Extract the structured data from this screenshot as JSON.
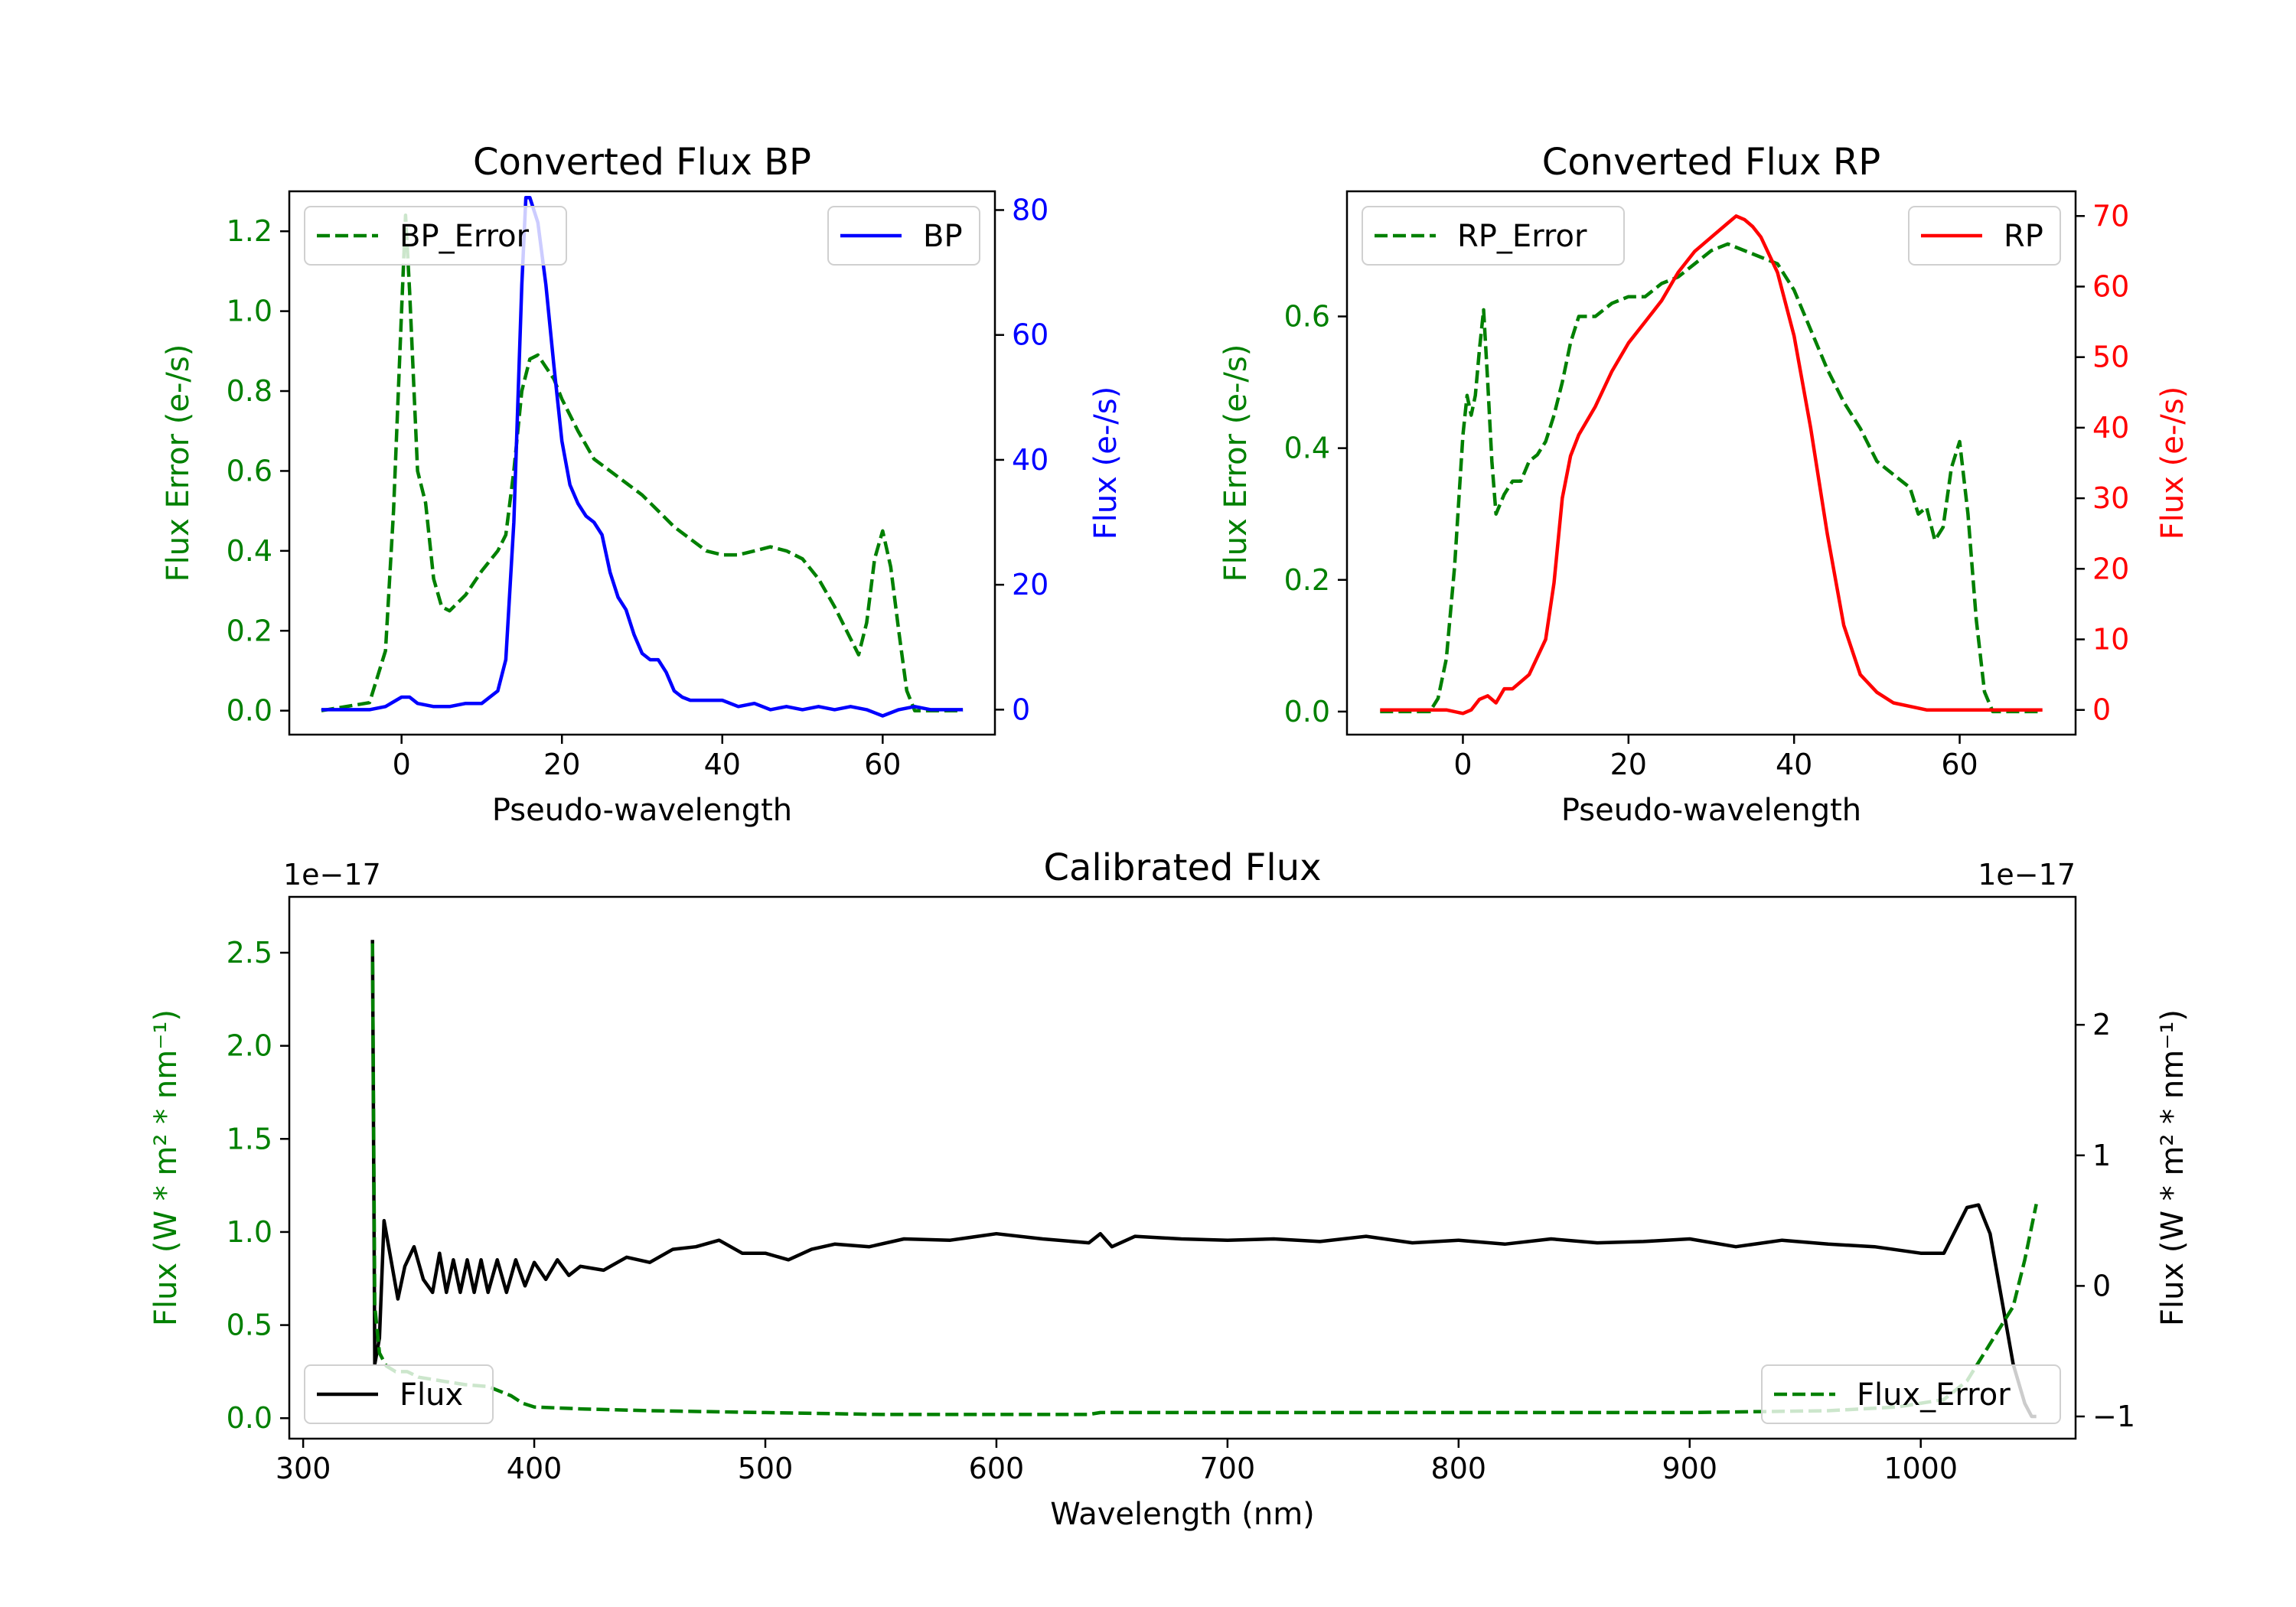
{
  "chart_data": [
    {
      "id": "bp",
      "type": "line",
      "title": "Converted Flux BP",
      "xlabel": "Pseudo-wavelength",
      "xlim": [
        -14,
        74
      ],
      "xticks": [
        0,
        20,
        40,
        60
      ],
      "left_axis": {
        "label": "Flux Error (e-/s)",
        "color": "#008000",
        "ylim": [
          -0.06,
          1.3
        ],
        "ticks": [
          "0.0",
          "0.2",
          "0.4",
          "0.6",
          "0.8",
          "1.0",
          "1.2"
        ],
        "tick_values": [
          0,
          0.2,
          0.4,
          0.6,
          0.8,
          1.0,
          1.2
        ]
      },
      "right_axis": {
        "label": "Flux (e-/s)",
        "color": "#0000ff",
        "ylim": [
          -4,
          83
        ],
        "ticks": [
          "0",
          "20",
          "40",
          "60",
          "80"
        ],
        "tick_values": [
          0,
          20,
          40,
          60,
          80
        ]
      },
      "series": [
        {
          "name": "BP_Error",
          "axis": "left",
          "color": "#008000",
          "dashed": true,
          "x": [
            -10,
            -4,
            -2,
            -1,
            0,
            0.5,
            1,
            2,
            3,
            4,
            5,
            6,
            8,
            10,
            12,
            13,
            14,
            15,
            16,
            17,
            18,
            19,
            20,
            22,
            24,
            26,
            28,
            30,
            32,
            34,
            36,
            38,
            40,
            42,
            44,
            46,
            48,
            50,
            52,
            54,
            56,
            57,
            58,
            59,
            60,
            61,
            62,
            63,
            64,
            66,
            70
          ],
          "y": [
            0.0,
            0.02,
            0.15,
            0.5,
            1.0,
            1.24,
            1.05,
            0.6,
            0.52,
            0.33,
            0.26,
            0.25,
            0.29,
            0.35,
            0.4,
            0.44,
            0.6,
            0.8,
            0.88,
            0.89,
            0.86,
            0.83,
            0.78,
            0.7,
            0.63,
            0.6,
            0.57,
            0.54,
            0.5,
            0.46,
            0.43,
            0.4,
            0.39,
            0.39,
            0.4,
            0.41,
            0.4,
            0.38,
            0.33,
            0.26,
            0.18,
            0.14,
            0.22,
            0.38,
            0.45,
            0.36,
            0.2,
            0.05,
            0.0,
            0.0,
            0.0
          ]
        },
        {
          "name": "BP",
          "axis": "right",
          "color": "#0000ff",
          "dashed": false,
          "x": [
            -10,
            -4,
            -2,
            0,
            1,
            2,
            4,
            6,
            8,
            10,
            12,
            13,
            14,
            15,
            15.5,
            16,
            17,
            18,
            19,
            20,
            21,
            22,
            23,
            24,
            25,
            26,
            27,
            28,
            29,
            30,
            31,
            32,
            33,
            34,
            35,
            36,
            38,
            40,
            42,
            44,
            46,
            48,
            50,
            52,
            54,
            56,
            58,
            60,
            62,
            64,
            66,
            70
          ],
          "y": [
            0,
            0,
            0.5,
            2,
            2,
            1,
            0.5,
            0.5,
            1,
            1,
            3,
            8,
            30,
            68,
            82,
            82,
            78,
            68,
            55,
            43,
            36,
            33,
            31,
            30,
            28,
            22,
            18,
            16,
            12,
            9,
            8,
            8,
            6,
            3,
            2,
            1.5,
            1.5,
            1.5,
            0.5,
            1,
            0,
            0.5,
            0,
            0.5,
            0,
            0.5,
            0,
            -1,
            0,
            0.5,
            0,
            0
          ]
        }
      ],
      "legends": [
        {
          "entries": [
            "BP_Error"
          ],
          "position": "upper-left"
        },
        {
          "entries": [
            "BP"
          ],
          "position": "upper-right"
        }
      ]
    },
    {
      "id": "rp",
      "type": "line",
      "title": "Converted Flux RP",
      "xlabel": "Pseudo-wavelength",
      "xlim": [
        -14,
        74
      ],
      "xticks": [
        0,
        20,
        40,
        60
      ],
      "left_axis": {
        "label": "Flux Error (e-/s)",
        "color": "#008000",
        "ylim": [
          -0.035,
          0.79
        ],
        "ticks": [
          "0.0",
          "0.2",
          "0.4",
          "0.6"
        ],
        "tick_values": [
          0,
          0.2,
          0.4,
          0.6
        ]
      },
      "right_axis": {
        "label": "Flux (e-/s)",
        "color": "#ff0000",
        "ylim": [
          -3.5,
          73.5
        ],
        "ticks": [
          "0",
          "10",
          "20",
          "30",
          "40",
          "50",
          "60",
          "70"
        ],
        "tick_values": [
          0,
          10,
          20,
          30,
          40,
          50,
          60,
          70
        ]
      },
      "series": [
        {
          "name": "RP_Error",
          "axis": "left",
          "color": "#008000",
          "dashed": true,
          "x": [
            -10,
            -4,
            -3,
            -2,
            -1,
            0,
            0.5,
            1,
            1.5,
            2,
            2.5,
            3,
            3.5,
            4,
            5,
            6,
            7,
            8,
            9,
            10,
            11,
            12,
            13,
            14,
            16,
            18,
            20,
            22,
            24,
            26,
            28,
            30,
            32,
            34,
            36,
            38,
            40,
            42,
            44,
            46,
            48,
            50,
            52,
            54,
            55,
            56,
            57,
            58,
            59,
            60,
            61,
            62,
            63,
            64,
            66,
            70
          ],
          "y": [
            0.0,
            0.0,
            0.02,
            0.08,
            0.22,
            0.42,
            0.48,
            0.45,
            0.48,
            0.55,
            0.61,
            0.5,
            0.38,
            0.3,
            0.33,
            0.35,
            0.35,
            0.38,
            0.39,
            0.41,
            0.45,
            0.5,
            0.56,
            0.6,
            0.6,
            0.62,
            0.63,
            0.63,
            0.65,
            0.66,
            0.68,
            0.7,
            0.71,
            0.7,
            0.69,
            0.68,
            0.64,
            0.58,
            0.52,
            0.47,
            0.43,
            0.38,
            0.36,
            0.34,
            0.3,
            0.31,
            0.26,
            0.28,
            0.37,
            0.41,
            0.3,
            0.14,
            0.03,
            0.0,
            0.0,
            0.0
          ]
        },
        {
          "name": "RP",
          "axis": "right",
          "color": "#ff0000",
          "dashed": false,
          "x": [
            -10,
            -4,
            -2,
            0,
            1,
            2,
            3,
            4,
            5,
            6,
            8,
            10,
            11,
            12,
            13,
            14,
            16,
            18,
            20,
            22,
            24,
            26,
            28,
            30,
            32,
            33,
            34,
            35,
            36,
            38,
            40,
            42,
            44,
            46,
            48,
            50,
            52,
            54,
            56,
            58,
            60,
            70
          ],
          "y": [
            0,
            0,
            0,
            -0.5,
            0,
            1.5,
            2,
            1,
            3,
            3,
            5,
            10,
            18,
            30,
            36,
            39,
            43,
            48,
            52,
            55,
            58,
            62,
            65,
            67,
            69,
            70,
            69.5,
            68.5,
            67,
            62,
            53,
            40,
            25,
            12,
            5,
            2.5,
            1,
            0.5,
            0,
            0,
            0,
            0
          ]
        }
      ],
      "legends": [
        {
          "entries": [
            "RP_Error"
          ],
          "position": "upper-left"
        },
        {
          "entries": [
            "RP"
          ],
          "position": "upper-right"
        }
      ]
    },
    {
      "id": "cal",
      "type": "line",
      "title": "Calibrated Flux",
      "xlabel": "Wavelength (nm)",
      "xlim": [
        294,
        1067
      ],
      "xticks": [
        300,
        400,
        500,
        600,
        700,
        800,
        900,
        1000
      ],
      "left_axis": {
        "label": "Flux (W * m² * nm⁻¹)",
        "color": "#008000",
        "ylim": [
          -0.11,
          2.8
        ],
        "ticks": [
          "0.0",
          "0.5",
          "1.0",
          "1.5",
          "2.0",
          "2.5"
        ],
        "tick_values": [
          0,
          0.5,
          1.0,
          1.5,
          2.0,
          2.5
        ],
        "offset_text": "1e−17"
      },
      "right_axis": {
        "label": "Flux (W * m² * nm⁻¹)",
        "color": "#000000",
        "ylim": [
          -1.17,
          2.98
        ],
        "ticks": [
          "−1",
          "0",
          "1",
          "2"
        ],
        "tick_values": [
          -1,
          0,
          1,
          2
        ],
        "offset_text": "1e−17"
      },
      "series": [
        {
          "name": "Flux",
          "axis": "right",
          "color": "#000000",
          "dashed": false,
          "x": [
            330,
            331,
            333,
            335,
            338,
            341,
            344,
            348,
            352,
            356,
            359,
            362,
            365,
            368,
            371,
            374,
            377,
            380,
            384,
            388,
            392,
            396,
            400,
            405,
            410,
            415,
            420,
            430,
            440,
            450,
            460,
            470,
            480,
            490,
            500,
            510,
            520,
            530,
            545,
            560,
            580,
            600,
            620,
            640,
            645,
            650,
            660,
            680,
            700,
            720,
            740,
            760,
            780,
            800,
            820,
            840,
            860,
            880,
            900,
            920,
            940,
            960,
            980,
            1000,
            1010,
            1020,
            1025,
            1030,
            1035,
            1040,
            1045,
            1048,
            1050
          ],
          "y": [
            2.65,
            -0.6,
            -0.4,
            0.5,
            0.2,
            -0.1,
            0.15,
            0.3,
            0.05,
            -0.05,
            0.25,
            -0.05,
            0.2,
            -0.05,
            0.2,
            -0.05,
            0.2,
            -0.05,
            0.2,
            -0.05,
            0.2,
            0.0,
            0.18,
            0.05,
            0.2,
            0.08,
            0.15,
            0.12,
            0.22,
            0.18,
            0.28,
            0.3,
            0.35,
            0.25,
            0.25,
            0.2,
            0.28,
            0.32,
            0.3,
            0.36,
            0.35,
            0.4,
            0.36,
            0.33,
            0.4,
            0.3,
            0.38,
            0.36,
            0.35,
            0.36,
            0.34,
            0.38,
            0.33,
            0.35,
            0.32,
            0.36,
            0.33,
            0.34,
            0.36,
            0.3,
            0.35,
            0.32,
            0.3,
            0.25,
            0.25,
            0.6,
            0.62,
            0.4,
            -0.1,
            -0.6,
            -0.9,
            -1.0,
            -1.0
          ]
        },
        {
          "name": "Flux_Error",
          "axis": "left",
          "color": "#008000",
          "dashed": true,
          "x": [
            330,
            331,
            333,
            336,
            340,
            345,
            350,
            360,
            370,
            380,
            390,
            395,
            400,
            420,
            450,
            500,
            550,
            600,
            640,
            645,
            700,
            800,
            900,
            960,
            990,
            1010,
            1020,
            1030,
            1040,
            1045,
            1050
          ],
          "y": [
            2.55,
            0.6,
            0.35,
            0.28,
            0.25,
            0.25,
            0.22,
            0.2,
            0.18,
            0.17,
            0.12,
            0.08,
            0.06,
            0.05,
            0.04,
            0.03,
            0.02,
            0.02,
            0.02,
            0.03,
            0.03,
            0.03,
            0.03,
            0.04,
            0.06,
            0.1,
            0.2,
            0.4,
            0.6,
            0.85,
            1.15
          ]
        }
      ],
      "legends": [
        {
          "entries": [
            "Flux"
          ],
          "position": "lower-left"
        },
        {
          "entries": [
            "Flux_Error"
          ],
          "position": "lower-right"
        }
      ]
    }
  ]
}
